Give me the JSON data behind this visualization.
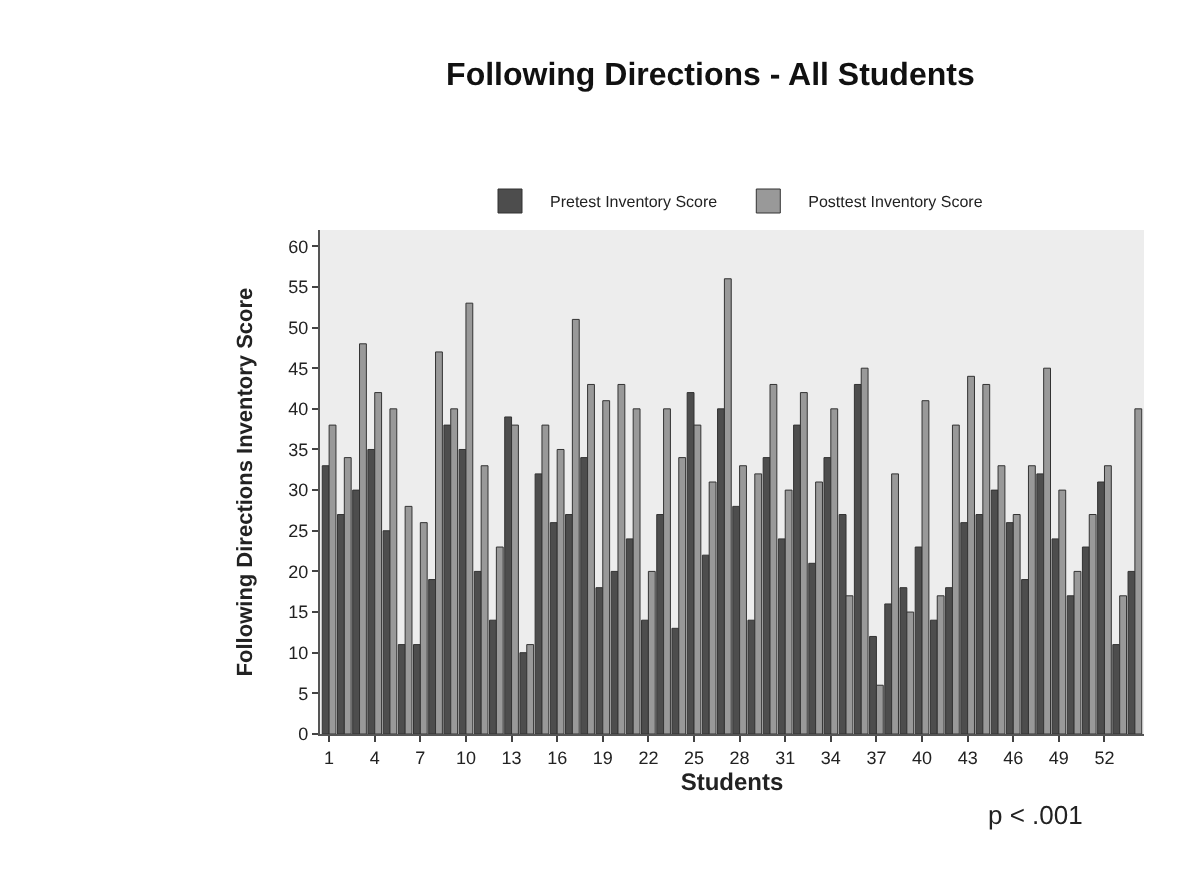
{
  "chart_data": {
    "type": "bar",
    "title": "Following Directions - All Students",
    "xlabel": "Students",
    "ylabel": "Following Directions Inventory Score",
    "categories": [
      "1",
      null,
      null,
      "4",
      null,
      null,
      "7",
      null,
      null,
      "10",
      null,
      null,
      "13",
      null,
      null,
      "16",
      null,
      null,
      "19",
      null,
      null,
      "22",
      null,
      null,
      "25",
      null,
      null,
      "28",
      null,
      null,
      "31",
      null,
      null,
      "34",
      null,
      null,
      "37",
      null,
      null,
      "40",
      null,
      null,
      "43",
      null,
      null,
      "46",
      null,
      null,
      "49",
      null,
      null,
      "52",
      null,
      null
    ],
    "series": [
      {
        "name": "Pretest Inventory Score",
        "color": "#4d4d4d",
        "values": [
          33,
          27,
          30,
          35,
          25,
          11,
          11,
          19,
          38,
          35,
          20,
          14,
          39,
          10,
          32,
          26,
          27,
          34,
          18,
          20,
          24,
          14,
          27,
          13,
          42,
          22,
          40,
          28,
          14,
          34,
          24,
          38,
          21,
          34,
          27,
          43,
          12,
          16,
          18,
          23,
          14,
          18,
          26,
          27,
          30,
          26,
          19,
          32,
          24,
          17,
          23,
          31,
          11,
          20
        ]
      },
      {
        "name": "Posttest Inventory Score",
        "color": "#999999",
        "values": [
          38,
          34,
          48,
          42,
          40,
          28,
          26,
          47,
          40,
          53,
          33,
          23,
          38,
          11,
          38,
          35,
          51,
          43,
          41,
          43,
          40,
          20,
          40,
          34,
          38,
          31,
          56,
          33,
          32,
          43,
          30,
          42,
          31,
          40,
          17,
          45,
          6,
          32,
          15,
          41,
          17,
          38,
          44,
          43,
          33,
          27,
          33,
          45,
          30,
          20,
          27,
          33,
          17,
          40
        ]
      }
    ],
    "ylim": [
      0,
      62
    ],
    "yticks": [
      0,
      5,
      10,
      15,
      20,
      25,
      30,
      35,
      40,
      45,
      50,
      55,
      60
    ],
    "grid": false,
    "legend": "top",
    "annotations": [
      "p < .001"
    ]
  }
}
